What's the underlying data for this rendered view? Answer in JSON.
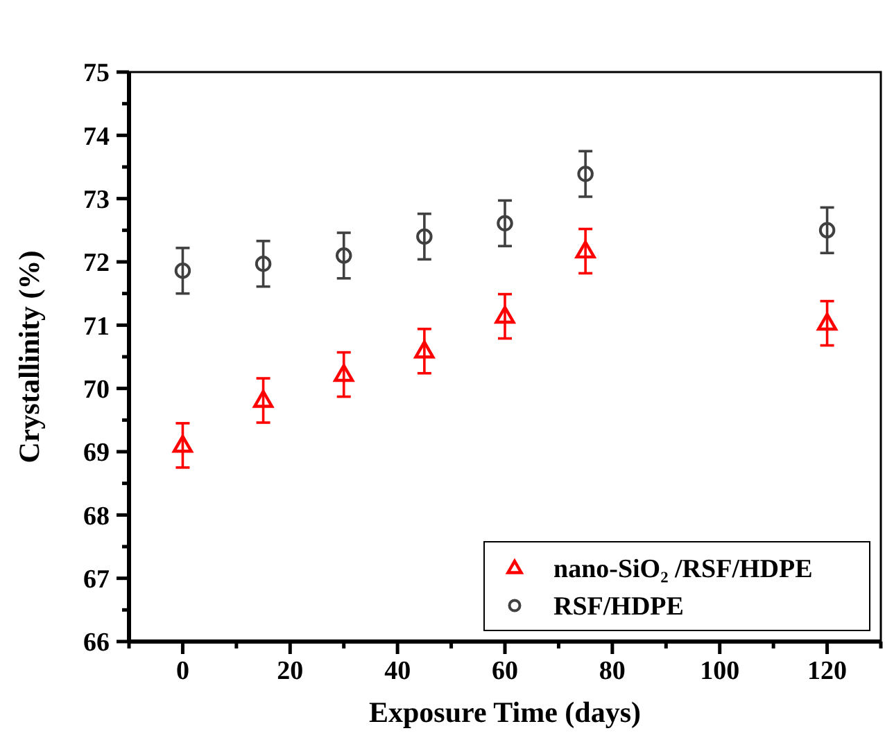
{
  "chart_data": {
    "type": "scatter",
    "xlabel": "Exposure Time (days)",
    "ylabel": "Crystallinity (%)",
    "xlim": [
      -10,
      130
    ],
    "ylim": [
      66,
      75
    ],
    "xticks": [
      {
        "value": -10,
        "label": null
      },
      0,
      {
        "value": 10,
        "label": null
      },
      20,
      {
        "value": 30,
        "label": null
      },
      40,
      {
        "value": 50,
        "label": null
      },
      60,
      {
        "value": 70,
        "label": null
      },
      80,
      {
        "value": 90,
        "label": null
      },
      100,
      {
        "value": 110,
        "label": null
      },
      120,
      {
        "value": 130,
        "label": null
      }
    ],
    "yticks": [
      66,
      {
        "value": 66.5,
        "label": null
      },
      67,
      {
        "value": 67.5,
        "label": null
      },
      68,
      {
        "value": 68.5,
        "label": null
      },
      69,
      {
        "value": 69.5,
        "label": null
      },
      70,
      {
        "value": 70.5,
        "label": null
      },
      71,
      {
        "value": 71.5,
        "label": null
      },
      72,
      {
        "value": 72.5,
        "label": null
      },
      73,
      {
        "value": 73.5,
        "label": null
      },
      74,
      {
        "value": 74.5,
        "label": null
      },
      75
    ],
    "x": [
      0,
      15,
      30,
      45,
      60,
      75,
      120
    ],
    "grid": false,
    "legend": "bottom right",
    "series": [
      {
        "name": "nano-SiO₂ /RSF/HDPE",
        "color": "#ff0000",
        "marker": "triangle",
        "values": [
          69.1,
          69.81,
          70.22,
          70.59,
          71.14,
          72.17,
          71.03
        ],
        "errors": [
          0.35,
          0.35,
          0.35,
          0.35,
          0.35,
          0.35,
          0.35
        ]
      },
      {
        "name": "RSF/HDPE",
        "color": "#404040",
        "marker": "circle",
        "values": [
          71.86,
          71.97,
          72.1,
          72.4,
          72.61,
          73.39,
          72.5
        ],
        "errors": [
          0.36,
          0.36,
          0.36,
          0.36,
          0.36,
          0.36,
          0.36
        ]
      }
    ]
  }
}
